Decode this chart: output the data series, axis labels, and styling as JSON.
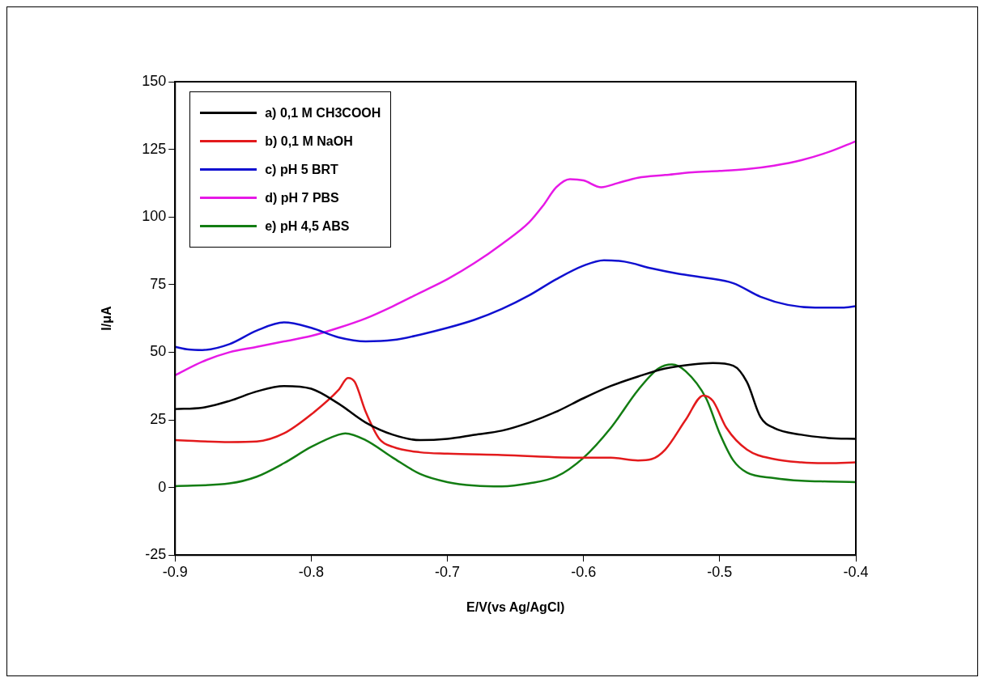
{
  "chart_data": {
    "type": "line",
    "xlabel": "E/V(vs Ag/AgCl)",
    "ylabel": "I/μA",
    "xlim": [
      -0.9,
      -0.4
    ],
    "xticks": [
      -0.9,
      -0.8,
      -0.7,
      -0.6,
      -0.5,
      -0.4
    ],
    "ylim": [
      -25,
      150
    ],
    "yticks": [
      -25,
      0,
      25,
      50,
      75,
      100,
      125,
      150
    ],
    "grid": false,
    "legend": "top left",
    "marker": "none",
    "line_style": "solid",
    "series": [
      {
        "name": "a) 0,1 M CH3COOH",
        "color": "#000000",
        "x": [
          -0.9,
          -0.88,
          -0.86,
          -0.84,
          -0.82,
          -0.8,
          -0.78,
          -0.76,
          -0.74,
          -0.72,
          -0.7,
          -0.68,
          -0.66,
          -0.64,
          -0.62,
          -0.6,
          -0.58,
          -0.56,
          -0.54,
          -0.52,
          -0.505,
          -0.49,
          -0.48,
          -0.47,
          -0.46,
          -0.44,
          -0.42,
          -0.4
        ],
        "values": [
          29,
          29.5,
          32,
          35.5,
          37.5,
          36.5,
          31,
          24,
          19.5,
          17.5,
          18,
          19.5,
          21,
          24,
          28,
          33,
          37.5,
          41,
          44,
          45.5,
          46,
          45,
          39,
          26,
          22,
          19.5,
          18.3,
          18
        ]
      },
      {
        "name": "b) 0,1 M NaOH",
        "color": "#e31a1c",
        "x": [
          -0.9,
          -0.86,
          -0.84,
          -0.82,
          -0.8,
          -0.78,
          -0.773,
          -0.768,
          -0.76,
          -0.75,
          -0.74,
          -0.72,
          -0.7,
          -0.66,
          -0.6,
          -0.58,
          -0.56,
          -0.55,
          -0.54,
          -0.525,
          -0.512,
          -0.505,
          -0.495,
          -0.48,
          -0.46,
          -0.44,
          -0.42,
          -0.4
        ],
        "values": [
          17.5,
          16.8,
          17,
          20,
          27,
          36,
          40.5,
          39,
          28,
          18,
          15,
          13,
          12.5,
          12,
          11,
          11,
          10,
          10.5,
          14,
          25,
          34,
          32,
          22,
          14,
          10.5,
          9.3,
          9,
          9.3
        ]
      },
      {
        "name": "c) pH 5 BRT",
        "color": "#1010d0",
        "x": [
          -0.9,
          -0.89,
          -0.88,
          -0.86,
          -0.84,
          -0.82,
          -0.8,
          -0.78,
          -0.76,
          -0.74,
          -0.72,
          -0.7,
          -0.68,
          -0.66,
          -0.64,
          -0.62,
          -0.6,
          -0.585,
          -0.57,
          -0.55,
          -0.53,
          -0.51,
          -0.49,
          -0.47,
          -0.45,
          -0.43,
          -0.41,
          -0.4
        ],
        "values": [
          52,
          51,
          50.8,
          53,
          58,
          61,
          59,
          55.5,
          54,
          54.5,
          56.5,
          59,
          62,
          66,
          71,
          77,
          82,
          84,
          83.5,
          81,
          79,
          77.5,
          75.5,
          70.5,
          67.5,
          66.5,
          66.5,
          67
        ]
      },
      {
        "name": "d) pH 7 PBS",
        "color": "#e619e6",
        "x": [
          -0.9,
          -0.88,
          -0.86,
          -0.84,
          -0.82,
          -0.8,
          -0.78,
          -0.76,
          -0.74,
          -0.72,
          -0.7,
          -0.68,
          -0.66,
          -0.64,
          -0.63,
          -0.62,
          -0.61,
          -0.6,
          -0.587,
          -0.575,
          -0.56,
          -0.54,
          -0.52,
          -0.5,
          -0.48,
          -0.46,
          -0.44,
          -0.42,
          -0.4
        ],
        "values": [
          41.5,
          46.5,
          50,
          52,
          54,
          56,
          59,
          62.5,
          67,
          72,
          77,
          83,
          90,
          98,
          104,
          111,
          114,
          113.5,
          111,
          112.5,
          114.5,
          115.5,
          116.5,
          117,
          117.7,
          119,
          121,
          124,
          128
        ]
      },
      {
        "name": "e) pH 4,5 ABS",
        "color": "#137d13",
        "x": [
          -0.9,
          -0.86,
          -0.84,
          -0.82,
          -0.8,
          -0.78,
          -0.775,
          -0.76,
          -0.74,
          -0.72,
          -0.7,
          -0.68,
          -0.66,
          -0.64,
          -0.62,
          -0.6,
          -0.58,
          -0.56,
          -0.545,
          -0.535,
          -0.525,
          -0.51,
          -0.5,
          -0.49,
          -0.48,
          -0.46,
          -0.44,
          -0.42,
          -0.4
        ],
        "values": [
          0.5,
          1.5,
          4,
          9,
          15,
          19.5,
          20,
          17.5,
          11,
          5,
          2,
          0.7,
          0.4,
          1.5,
          4,
          11,
          22,
          36,
          44,
          45.5,
          43,
          33,
          20,
          10,
          5.5,
          3.5,
          2.5,
          2.2,
          2
        ]
      }
    ]
  }
}
